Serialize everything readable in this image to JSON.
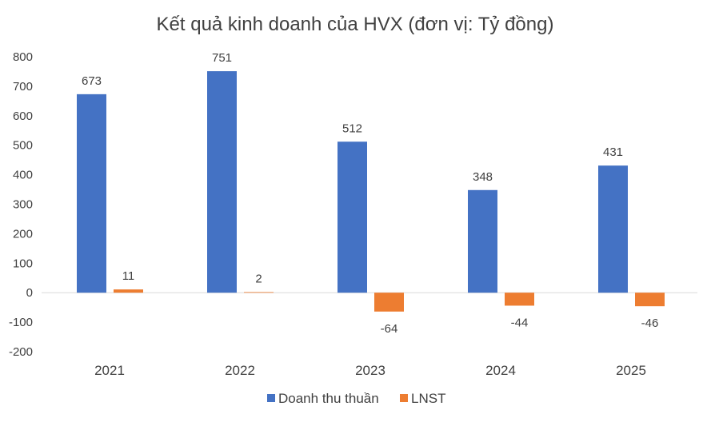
{
  "chart_data": {
    "type": "bar",
    "title": "Kết quả kinh doanh của HVX (đơn vị: Tỷ đồng)",
    "categories": [
      "2021",
      "2022",
      "2023",
      "2024",
      "2025"
    ],
    "series": [
      {
        "name": "Doanh thu thuần",
        "values": [
          673,
          751,
          512,
          348,
          431
        ],
        "color": "#4472C4"
      },
      {
        "name": "LNST",
        "values": [
          11,
          2,
          -64,
          -44,
          -46
        ],
        "color": "#ED7D31"
      }
    ],
    "ylim": [
      -200,
      800
    ],
    "yticks": [
      "800",
      "700",
      "600",
      "500",
      "400",
      "300",
      "200",
      "100",
      "0",
      "-100",
      "-200"
    ],
    "ytick_values": [
      800,
      700,
      600,
      500,
      400,
      300,
      200,
      100,
      0,
      -100,
      -200
    ],
    "xlabel": "",
    "ylabel": "",
    "grid": false,
    "legend": "bottom-center"
  }
}
